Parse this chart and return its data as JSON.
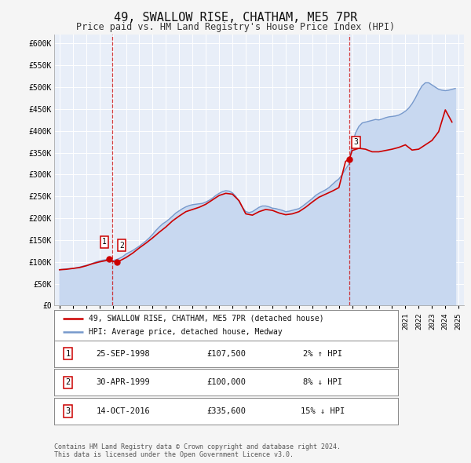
{
  "title": "49, SWALLOW RISE, CHATHAM, ME5 7PR",
  "subtitle": "Price paid vs. HM Land Registry's House Price Index (HPI)",
  "title_fontsize": 11,
  "subtitle_fontsize": 8.5,
  "background_color": "#f5f5f5",
  "plot_bg_color": "#e8eef8",
  "grid_color": "#ffffff",
  "ylabel_ticks": [
    "£0",
    "£50K",
    "£100K",
    "£150K",
    "£200K",
    "£250K",
    "£300K",
    "£350K",
    "£400K",
    "£450K",
    "£500K",
    "£550K",
    "£600K"
  ],
  "ylabel_values": [
    0,
    50000,
    100000,
    150000,
    200000,
    250000,
    300000,
    350000,
    400000,
    450000,
    500000,
    550000,
    600000
  ],
  "ylim": [
    0,
    620000
  ],
  "red_line_label": "49, SWALLOW RISE, CHATHAM, ME5 7PR (detached house)",
  "blue_line_label": "HPI: Average price, detached house, Medway",
  "red_color": "#cc0000",
  "blue_color": "#7799cc",
  "blue_fill_color": "#c8d8f0",
  "transaction_labels": [
    "1",
    "2",
    "3"
  ],
  "transaction_dates": [
    1998.73,
    1999.33,
    2016.79
  ],
  "transaction_prices": [
    107500,
    100000,
    335600
  ],
  "transaction_date_strs": [
    "25-SEP-1998",
    "30-APR-1999",
    "14-OCT-2016"
  ],
  "transaction_price_strs": [
    "£107,500",
    "£100,000",
    "£335,600"
  ],
  "transaction_hpi_strs": [
    "2% ↑ HPI",
    "8% ↓ HPI",
    "15% ↓ HPI"
  ],
  "vline_dates": [
    1998.95,
    2016.79
  ],
  "footer_text": "Contains HM Land Registry data © Crown copyright and database right 2024.\nThis data is licensed under the Open Government Licence v3.0.",
  "hpi_years": [
    1995.0,
    1995.25,
    1995.5,
    1995.75,
    1996.0,
    1996.25,
    1996.5,
    1996.75,
    1997.0,
    1997.25,
    1997.5,
    1997.75,
    1998.0,
    1998.25,
    1998.5,
    1998.75,
    1999.0,
    1999.25,
    1999.5,
    1999.75,
    2000.0,
    2000.25,
    2000.5,
    2000.75,
    2001.0,
    2001.25,
    2001.5,
    2001.75,
    2002.0,
    2002.25,
    2002.5,
    2002.75,
    2003.0,
    2003.25,
    2003.5,
    2003.75,
    2004.0,
    2004.25,
    2004.5,
    2004.75,
    2005.0,
    2005.25,
    2005.5,
    2005.75,
    2006.0,
    2006.25,
    2006.5,
    2006.75,
    2007.0,
    2007.25,
    2007.5,
    2007.75,
    2008.0,
    2008.25,
    2008.5,
    2008.75,
    2009.0,
    2009.25,
    2009.5,
    2009.75,
    2010.0,
    2010.25,
    2010.5,
    2010.75,
    2011.0,
    2011.25,
    2011.5,
    2011.75,
    2012.0,
    2012.25,
    2012.5,
    2012.75,
    2013.0,
    2013.25,
    2013.5,
    2013.75,
    2014.0,
    2014.25,
    2014.5,
    2014.75,
    2015.0,
    2015.25,
    2015.5,
    2015.75,
    2016.0,
    2016.25,
    2016.5,
    2016.75,
    2017.0,
    2017.25,
    2017.5,
    2017.75,
    2018.0,
    2018.25,
    2018.5,
    2018.75,
    2019.0,
    2019.25,
    2019.5,
    2019.75,
    2020.0,
    2020.25,
    2020.5,
    2020.75,
    2021.0,
    2021.25,
    2021.5,
    2021.75,
    2022.0,
    2022.25,
    2022.5,
    2022.75,
    2023.0,
    2023.25,
    2023.5,
    2023.75,
    2024.0,
    2024.25,
    2024.5,
    2024.75
  ],
  "hpi_values": [
    82000,
    83000,
    84000,
    84500,
    85000,
    86500,
    88000,
    90000,
    92000,
    94000,
    97000,
    100000,
    102000,
    104000,
    105000,
    104000,
    103000,
    105000,
    108000,
    112000,
    118000,
    122000,
    126000,
    131000,
    136000,
    142000,
    148000,
    155000,
    163000,
    172000,
    180000,
    187000,
    192000,
    198000,
    205000,
    212000,
    217000,
    222000,
    226000,
    229000,
    231000,
    232000,
    233000,
    234000,
    237000,
    241000,
    246000,
    252000,
    257000,
    261000,
    263000,
    262000,
    258000,
    250000,
    238000,
    225000,
    215000,
    213000,
    215000,
    220000,
    225000,
    228000,
    228000,
    226000,
    223000,
    222000,
    220000,
    218000,
    215000,
    216000,
    218000,
    220000,
    222000,
    227000,
    233000,
    239000,
    245000,
    252000,
    257000,
    261000,
    265000,
    270000,
    277000,
    284000,
    290000,
    300000,
    312000,
    324000,
    368000,
    395000,
    410000,
    418000,
    420000,
    422000,
    424000,
    426000,
    425000,
    427000,
    430000,
    432000,
    433000,
    434000,
    436000,
    440000,
    445000,
    452000,
    462000,
    475000,
    490000,
    503000,
    510000,
    510000,
    505000,
    500000,
    495000,
    493000,
    492000,
    493000,
    495000,
    497000
  ],
  "red_years": [
    1995.0,
    1995.5,
    1996.0,
    1996.5,
    1997.0,
    1997.5,
    1998.0,
    1998.5,
    1998.73,
    1999.0,
    1999.33,
    1999.5,
    2000.0,
    2000.5,
    2001.0,
    2001.5,
    2002.0,
    2002.5,
    2003.0,
    2003.5,
    2004.0,
    2004.5,
    2005.0,
    2005.5,
    2006.0,
    2006.5,
    2007.0,
    2007.5,
    2008.0,
    2008.5,
    2009.0,
    2009.5,
    2010.0,
    2010.5,
    2011.0,
    2011.5,
    2012.0,
    2012.5,
    2013.0,
    2013.5,
    2014.0,
    2014.5,
    2015.0,
    2015.5,
    2016.0,
    2016.5,
    2016.79,
    2017.0,
    2017.5,
    2018.0,
    2018.5,
    2019.0,
    2019.5,
    2020.0,
    2020.5,
    2021.0,
    2021.5,
    2022.0,
    2022.5,
    2023.0,
    2023.5,
    2024.0,
    2024.5
  ],
  "red_values": [
    82000,
    83000,
    85000,
    87000,
    91000,
    96000,
    100000,
    103000,
    107500,
    101000,
    100000,
    102000,
    110000,
    120000,
    132000,
    143000,
    155000,
    168000,
    180000,
    194000,
    205000,
    215000,
    220000,
    225000,
    232000,
    242000,
    252000,
    257000,
    255000,
    240000,
    210000,
    207000,
    215000,
    220000,
    218000,
    212000,
    208000,
    210000,
    215000,
    225000,
    237000,
    248000,
    255000,
    262000,
    270000,
    330000,
    335600,
    355000,
    360000,
    358000,
    352000,
    352000,
    355000,
    358000,
    362000,
    368000,
    356000,
    358000,
    368000,
    378000,
    398000,
    448000,
    420000
  ]
}
